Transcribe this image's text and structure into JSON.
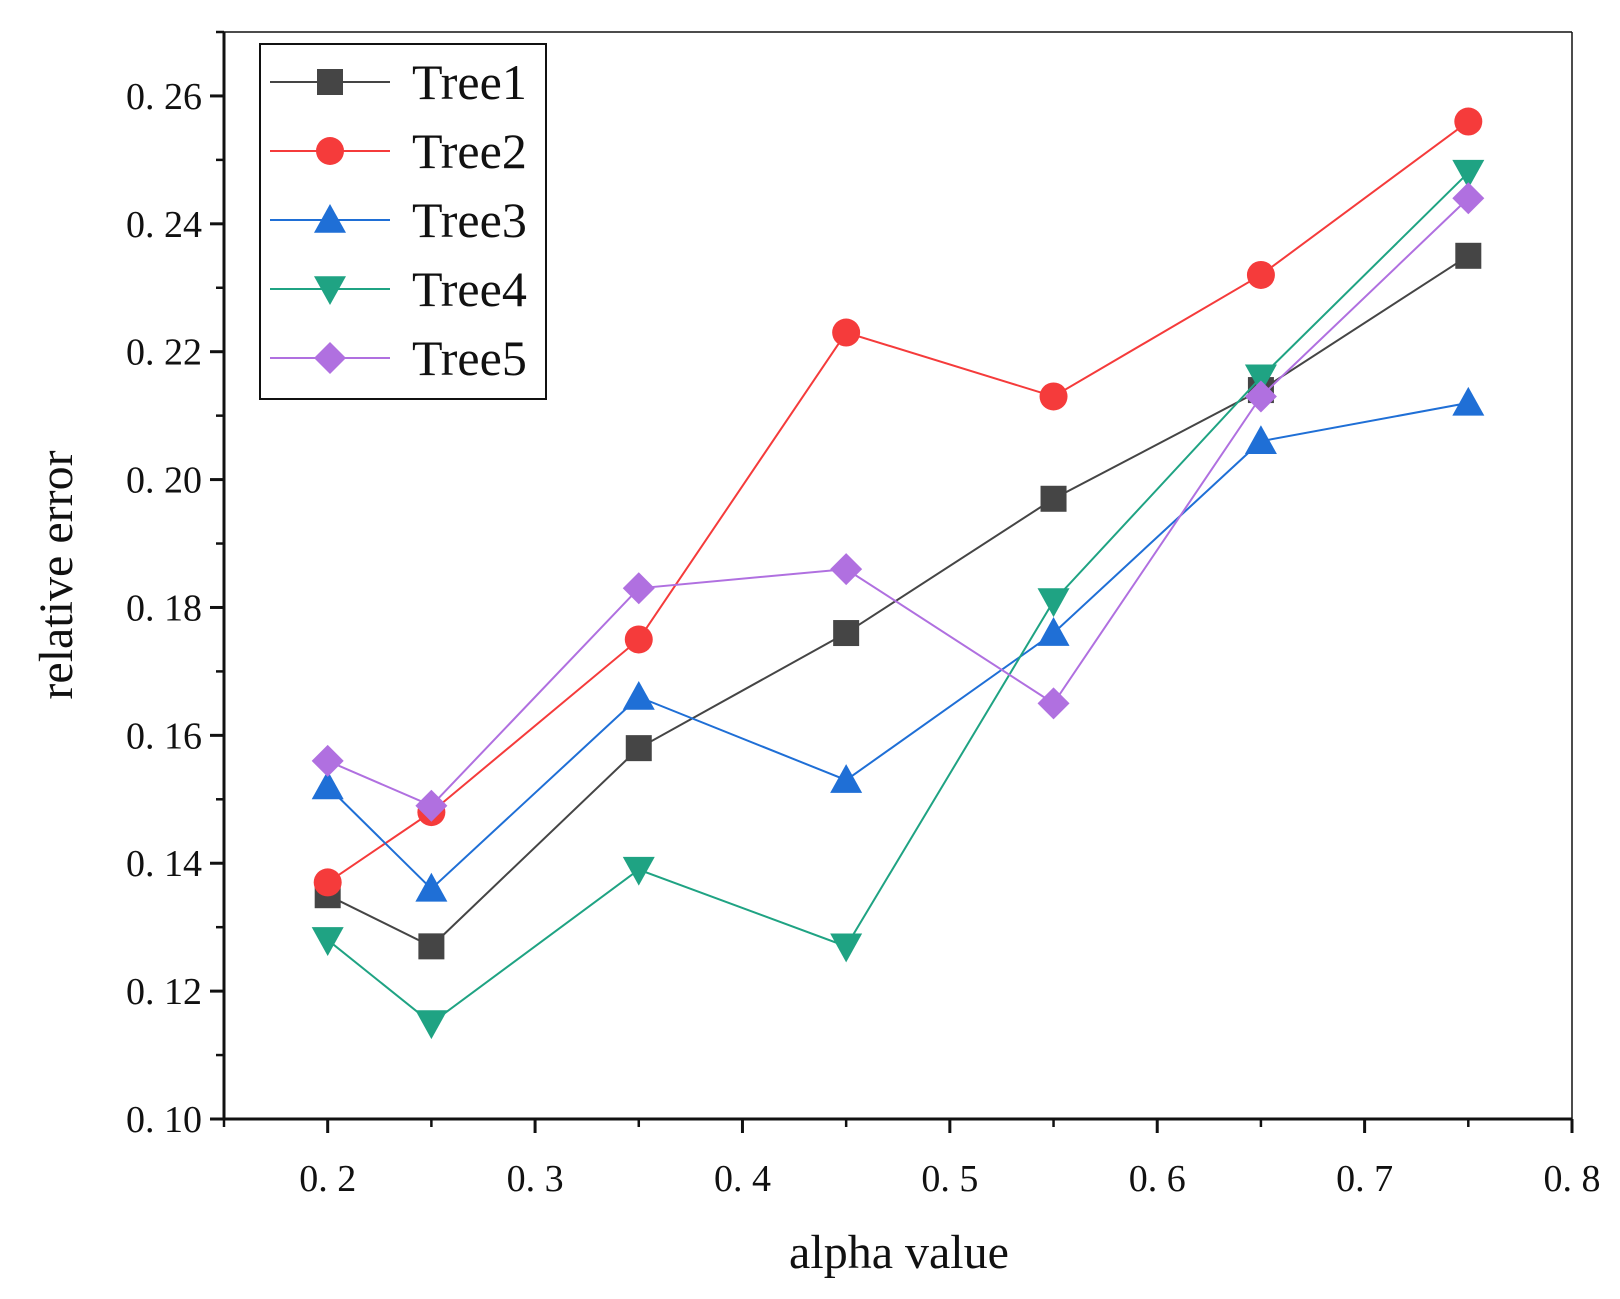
{
  "chart_data": {
    "type": "line",
    "title": "",
    "xlabel": "alpha value",
    "ylabel": "relative error",
    "xlim": [
      0.15,
      0.8
    ],
    "ylim": [
      0.1,
      0.27
    ],
    "xticks": [
      0.2,
      0.3,
      0.4,
      0.5,
      0.6,
      0.7,
      0.8
    ],
    "xtick_labels": [
      "0. 2",
      "0. 3",
      "0. 4",
      "0. 5",
      "0. 6",
      "0. 7",
      "0. 8"
    ],
    "yticks": [
      0.1,
      0.12,
      0.14,
      0.16,
      0.18,
      0.2,
      0.22,
      0.24,
      0.26
    ],
    "ytick_labels": [
      "0. 10",
      "0. 12",
      "0. 14",
      "0. 16",
      "0. 18",
      "0. 20",
      "0. 22",
      "0. 24",
      "0. 26"
    ],
    "x": [
      0.2,
      0.25,
      0.35,
      0.45,
      0.55,
      0.65,
      0.75
    ],
    "legend_position": "top-left",
    "grid": false,
    "series": [
      {
        "name": "Tree1",
        "marker": "square",
        "color": "#454545",
        "values": [
          0.135,
          0.127,
          0.158,
          0.176,
          0.197,
          0.214,
          0.235
        ]
      },
      {
        "name": "Tree2",
        "marker": "circle",
        "color": "#f53b3b",
        "values": [
          0.137,
          0.148,
          0.175,
          0.223,
          0.213,
          0.232,
          0.256
        ]
      },
      {
        "name": "Tree3",
        "marker": "triangle-up",
        "color": "#1f6fd6",
        "values": [
          0.152,
          0.136,
          0.166,
          0.153,
          0.176,
          0.206,
          0.212
        ]
      },
      {
        "name": "Tree4",
        "marker": "triangle-down",
        "color": "#1fa383",
        "values": [
          0.128,
          0.115,
          0.139,
          0.127,
          0.181,
          0.216,
          0.248
        ]
      },
      {
        "name": "Tree5",
        "marker": "diamond",
        "color": "#b070e0",
        "values": [
          0.156,
          0.149,
          0.183,
          0.186,
          0.165,
          0.213,
          0.244
        ]
      }
    ]
  }
}
